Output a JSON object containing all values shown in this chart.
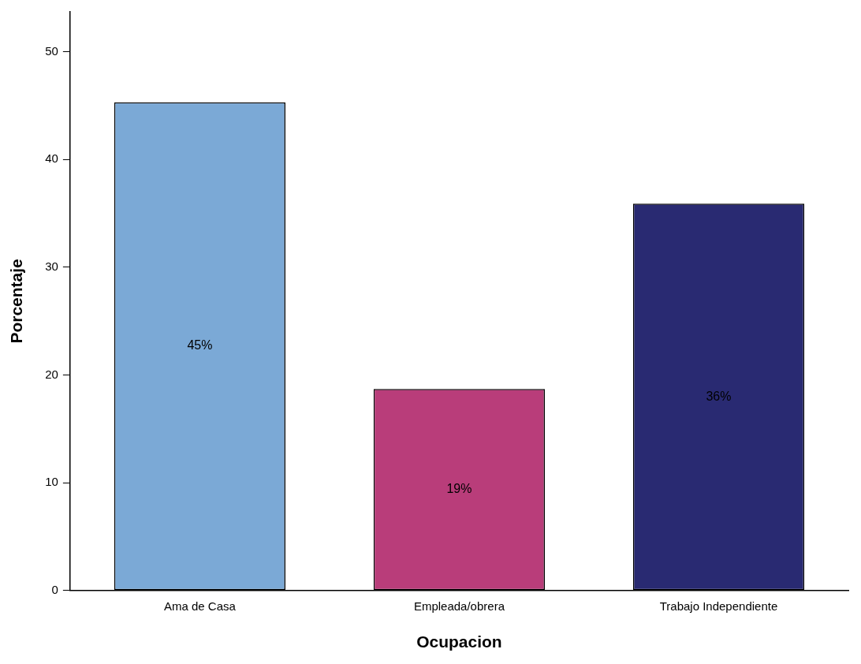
{
  "chart_data": {
    "type": "bar",
    "xlabel": "Ocupacion",
    "ylabel": "Porcentaje",
    "categories": [
      "Ama de Casa",
      "Empleada/obrera",
      "Trabajo Independiente"
    ],
    "values": [
      45.3,
      18.7,
      35.9
    ],
    "colors": [
      "#7ba9d6",
      "#b93d7a",
      "#292a72"
    ],
    "value_labels": [
      "45%",
      "19%",
      "36%"
    ],
    "ylim": [
      0,
      53.7
    ],
    "yticks": [
      0,
      10,
      20,
      30,
      40,
      50
    ],
    "grid": false,
    "legend": false
  }
}
